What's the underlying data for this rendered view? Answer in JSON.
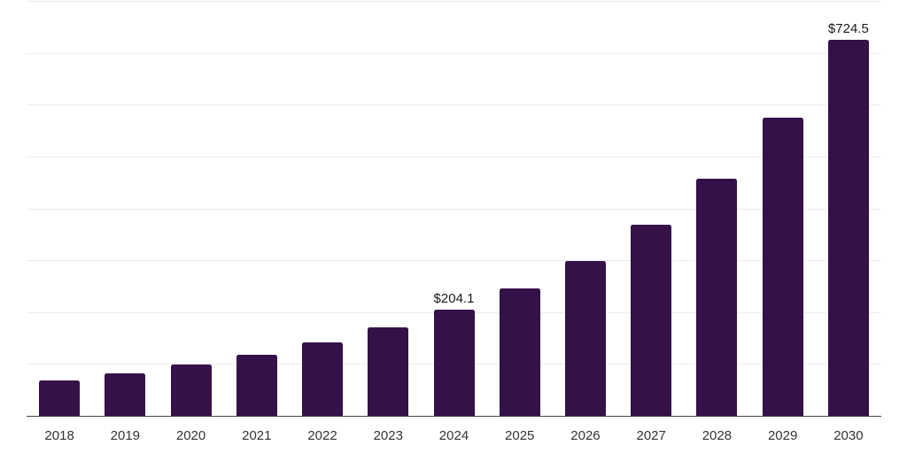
{
  "chart_data": {
    "type": "bar",
    "title": "",
    "xlabel": "",
    "ylabel": "",
    "categories": [
      "2018",
      "2019",
      "2020",
      "2021",
      "2022",
      "2023",
      "2024",
      "2025",
      "2026",
      "2027",
      "2028",
      "2029",
      "2030"
    ],
    "values": [
      68.3,
      82.0,
      98.4,
      118.1,
      141.7,
      170.1,
      204.1,
      246.0,
      298.5,
      368.5,
      456.5,
      575.4,
      724.5
    ],
    "data_labels": {
      "2024": "$204.1",
      "2030": "$724.5"
    },
    "value_prefix": "$",
    "ylim": [
      0,
      800
    ],
    "grid_step": 100,
    "grid": true,
    "legend": false,
    "y_axis_labels_visible": false,
    "colors": {
      "bar": "#341149",
      "grid": "#ededed",
      "axis_line": "#444444",
      "tick_label": "#333333",
      "data_label": "#1a1a1a",
      "background": "#ffffff"
    }
  }
}
